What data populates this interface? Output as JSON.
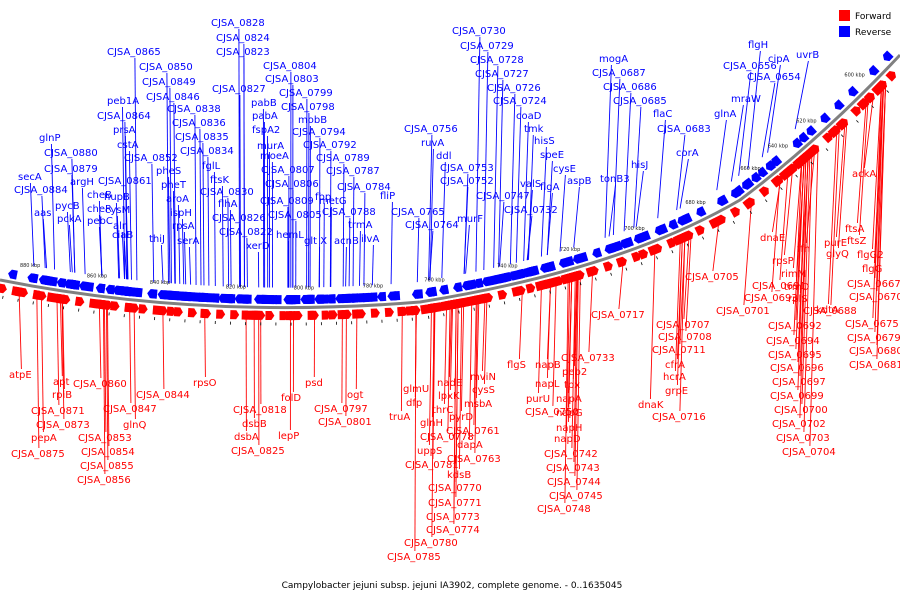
{
  "caption": "Campylobacter jejuni subsp. jejuni IA3902, complete genome. - 0..1635045",
  "legend": [
    {
      "label": "Forward",
      "color": "#ff0000"
    },
    {
      "label": "Reverse",
      "color": "#0000ff"
    }
  ],
  "colors": {
    "forward": "#ff0000",
    "reverse": "#0000ff",
    "backbone": "#808080",
    "tick": "#000000"
  },
  "kbp_ticks": [
    "600 kbp",
    "620 kbp",
    "640 kbp",
    "660 kbp",
    "680 kbp",
    "700 kbp",
    "720 kbp",
    "740 kbp",
    "760 kbp",
    "780 kbp",
    "800 kbp",
    "820 kbp",
    "840 kbp",
    "860 kbp",
    "880 kbp"
  ],
  "reverse_labels": [
    "CJSA_0828",
    "CJSA_0824",
    "CJSA_0823",
    "CJSA_0865",
    "CJSA_0850",
    "CJSA_0849",
    "CJSA_0846",
    "peb1A",
    "CJSA_0864",
    "prsA",
    "cstA",
    "CJSA_0852",
    "glnP",
    "CJSA_0880",
    "CJSA_0879",
    "argH",
    "secA",
    "CJSA_0884",
    "pycB",
    "pckA",
    "aas",
    "cheB",
    "cheR",
    "pebC",
    "CJSA_0861",
    "hupB",
    "cysM",
    "alr",
    "ciaB",
    "thiJ",
    "pheS",
    "pheT",
    "aroA",
    "ispH",
    "rpsA",
    "serA",
    "CJSA_0838",
    "CJSA_0836",
    "CJSA_0835",
    "CJSA_0834",
    "fglL",
    "ftsK",
    "CJSA_0830",
    "flhA",
    "CJSA_0826",
    "CJSA_0822",
    "CJSA_0827",
    "pabB",
    "pabA",
    "fspA2",
    "murA",
    "moeA",
    "CJSA_0807",
    "CJSA_0806",
    "CJSA_0809",
    "CJSA_0805",
    "xerD",
    "CJSA_0804",
    "CJSA_0803",
    "CJSA_0799",
    "CJSA_0798",
    "mobB",
    "CJSA_0794",
    "CJSA_0792",
    "CJSA_0789",
    "CJSA_0787",
    "CJSA_0784",
    "fbp",
    "hemL",
    "metG",
    "CJSA_0788",
    "glt X",
    "trmA",
    "acnB",
    "ilvA",
    "fliP",
    "CJSA_0730",
    "CJSA_0729",
    "CJSA_0728",
    "CJSA_0727",
    "CJSA_0726",
    "CJSA_0724",
    "coaD",
    "tmk",
    "hisS",
    "speE",
    "cysE",
    "aspB",
    "valS",
    "flgA",
    "CJSA_0732",
    "CJSA_0756",
    "ruvA",
    "ddl",
    "CJSA_0753",
    "CJSA_0752",
    "CJSA_0747",
    "CJSA_0765",
    "CJSA_0764",
    "murF",
    "mogA",
    "CJSA_0687",
    "CJSA_0686",
    "CJSA_0685",
    "flaC",
    "CJSA_0683",
    "corA",
    "hisJ",
    "tonB3",
    "glnA",
    "mraW",
    "flgH",
    "cipA",
    "uvrB",
    "CJSA_0656",
    "CJSA_0654"
  ],
  "forward_labels": [
    "atpE",
    "apt",
    "rpiB",
    "CJSA_0871",
    "CJSA_0873",
    "pepA",
    "CJSA_0875",
    "CJSA_0860",
    "CJSA_0847",
    "glnQ",
    "CJSA_0853",
    "CJSA_0854",
    "CJSA_0855",
    "CJSA_0856",
    "CJSA_0844",
    "rpsO",
    "CJSA_0818",
    "dsbB",
    "dsbA",
    "CJSA_0825",
    "folD",
    "lepP",
    "psd",
    "CJSA_0797",
    "CJSA_0801",
    "ogt",
    "glmU",
    "nadE",
    "mviN",
    "dfp",
    "lpxK",
    "cysS",
    "truA",
    "glnH",
    "thrC",
    "msbA",
    "CJSA_0778",
    "CJSA_0761",
    "pyrD",
    "uppS",
    "dapA",
    "CJSA_0781",
    "CJSA_0763",
    "kdsB",
    "CJSA_0770",
    "CJSA_0771",
    "CJSA_0773",
    "CJSA_0774",
    "CJSA_0780",
    "CJSA_0785",
    "flgS",
    "napB",
    "CJSA_0733",
    "peb2",
    "napL",
    "tpx",
    "purU",
    "napA",
    "CJSA_0750",
    "napG",
    "napH",
    "napD",
    "CJSA_0742",
    "CJSA_0743",
    "CJSA_0744",
    "CJSA_0745",
    "CJSA_0748",
    "CJSA_0717",
    "CJSA_0707",
    "CJSA_0708",
    "CJSA_0711",
    "cfrA",
    "hcrA",
    "grpE",
    "dnaK",
    "CJSA_0716",
    "CJSA_0705",
    "CJSA_0691",
    "CJSA_0693",
    "CJSA_0701",
    "CJSA_0692",
    "CJSA_0694",
    "CJSA_0695",
    "CJSA_0696",
    "CJSA_0697",
    "CJSA_0699",
    "CJSA_0700",
    "CJSA_0702",
    "CJSA_0703",
    "CJSA_0704",
    "dnaE",
    "ffh",
    "rpsP",
    "glyQ",
    "purE",
    "ftsA",
    "ftsZ",
    "flgG2",
    "flgG",
    "rimM",
    "trmD",
    "rplS",
    "CJSA_0688",
    "kdtA",
    "CJSA_0667",
    "CJSA_0670",
    "CJSA_0675",
    "CJSA_0679",
    "CJSA_0680",
    "CJSA_0681",
    "ackA"
  ]
}
